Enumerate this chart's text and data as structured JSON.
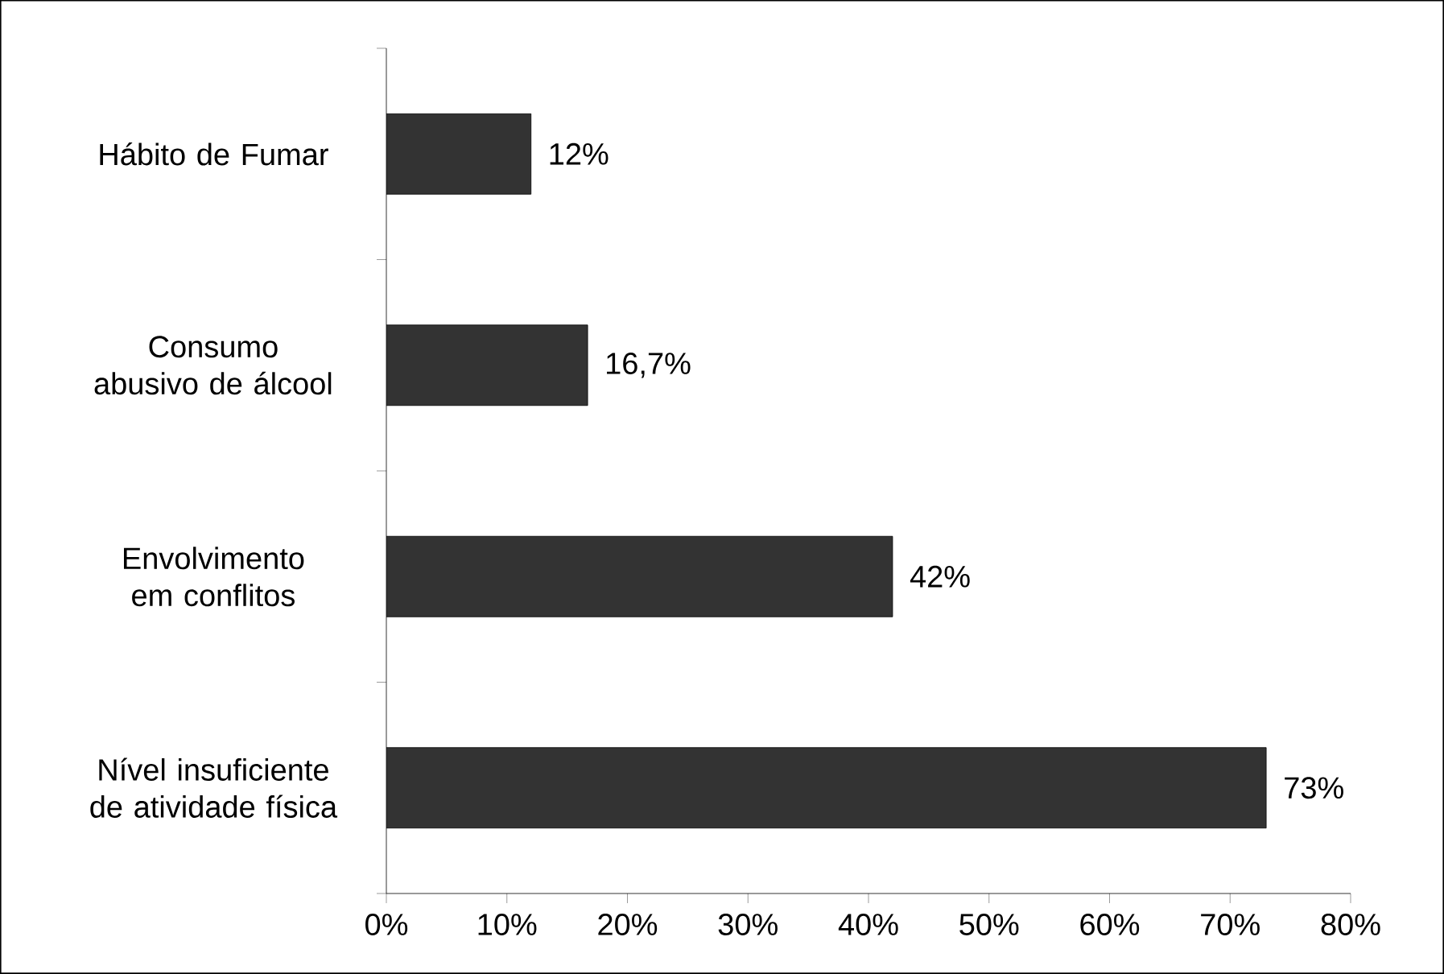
{
  "chart_data": {
    "type": "bar",
    "orientation": "horizontal",
    "categories": [
      "Hábito de Fumar",
      "Consumo abusivo de álcool",
      "Envolvimento em conflitos",
      "Nível insuficiente de atividade física"
    ],
    "values": [
      12,
      16.7,
      42,
      73
    ],
    "value_labels": [
      "12%",
      "16,7%",
      "42%",
      "73%"
    ],
    "color": "#333333",
    "xlim": [
      0,
      80
    ],
    "xticks": [
      {
        "value": 0,
        "label": "0%"
      },
      {
        "value": 10,
        "label": "10%"
      },
      {
        "value": 20,
        "label": "20%"
      },
      {
        "value": 30,
        "label": "30%"
      },
      {
        "value": 40,
        "label": "40%"
      },
      {
        "value": 50,
        "label": "50%"
      },
      {
        "value": 60,
        "label": "60%"
      },
      {
        "value": 70,
        "label": "70%"
      },
      {
        "value": 80,
        "label": "80%"
      }
    ]
  }
}
